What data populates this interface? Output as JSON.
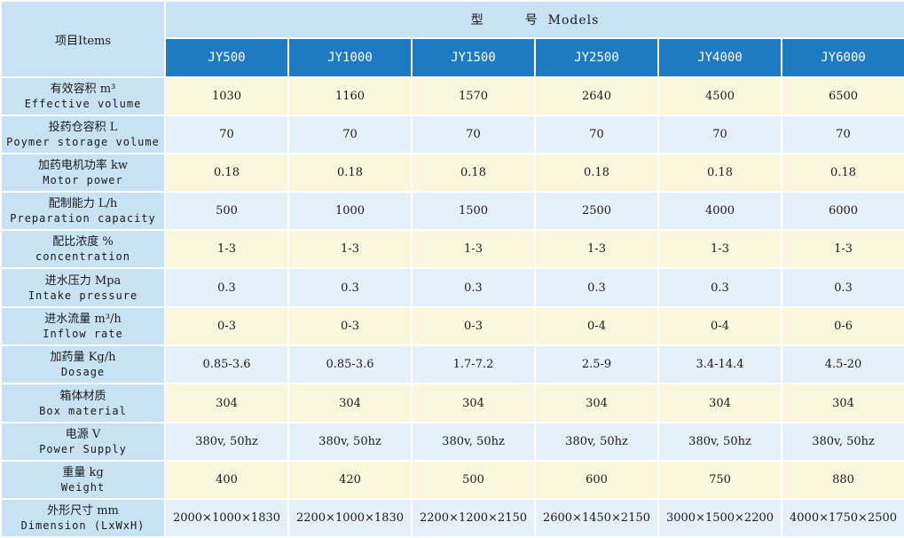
{
  "header": {
    "items_label": "项目Items",
    "models_zh": "型",
    "models_zh2": "号",
    "models_en": "Models",
    "models": [
      "JY500",
      "JY1000",
      "JY1500",
      "JY2500",
      "JY4000",
      "JY6000"
    ]
  },
  "rows": [
    {
      "zh": "有效容积 m³",
      "en": "Effective volume",
      "values": [
        "1030",
        "1160",
        "1570",
        "2640",
        "4500",
        "6500"
      ]
    },
    {
      "zh": "投药仓容积 L",
      "en": "Poymer storage volume",
      "values": [
        "70",
        "70",
        "70",
        "70",
        "70",
        "70"
      ]
    },
    {
      "zh": "加药电机功率 kw",
      "en": "Motor power",
      "values": [
        "0.18",
        "0.18",
        "0.18",
        "0.18",
        "0.18",
        "0.18"
      ]
    },
    {
      "zh": "配制能力 L/h",
      "en": "Preparation capacity",
      "values": [
        "500",
        "1000",
        "1500",
        "2500",
        "4000",
        "6000"
      ]
    },
    {
      "zh": "配比浓度 %",
      "en": "concentration",
      "values": [
        "1-3",
        "1-3",
        "1-3",
        "1-3",
        "1-3",
        "1-3"
      ]
    },
    {
      "zh": "进水压力 Mpa",
      "en": "Intake pressure",
      "values": [
        "0.3",
        "0.3",
        "0.3",
        "0.3",
        "0.3",
        "0.3"
      ]
    },
    {
      "zh": "进水流量 m³/h",
      "en": "Inflow rate",
      "values": [
        "0-3",
        "0-3",
        "0-3",
        "0-4",
        "0-4",
        "0-6"
      ]
    },
    {
      "zh": "加药量 Kg/h",
      "en": "Dosage",
      "values": [
        "0.85-3.6",
        "0.85-3.6",
        "1.7-7.2",
        "2.5-9",
        "3.4-14.4",
        "4.5-20"
      ]
    },
    {
      "zh": "箱体材质",
      "en": "Box material",
      "values": [
        "304",
        "304",
        "304",
        "304",
        "304",
        "304"
      ]
    },
    {
      "zh": "电源 V",
      "en": "Power Supply",
      "values": [
        "380v, 50hz",
        "380v, 50hz",
        "380v, 50hz",
        "380v, 50hz",
        "380v, 50hz",
        "380v, 50hz"
      ]
    },
    {
      "zh": "重量 kg",
      "en": "Weight",
      "values": [
        "400",
        "420",
        "500",
        "600",
        "750",
        "880"
      ]
    },
    {
      "zh": "外形尺寸 mm",
      "en": "Dimension (LxWxH)",
      "values": [
        "2000×1000×1830",
        "2200×1000×1830",
        "2200×1200×2150",
        "2600×1450×2150",
        "3000×1500×2200",
        "4000×1750×2500"
      ]
    }
  ]
}
